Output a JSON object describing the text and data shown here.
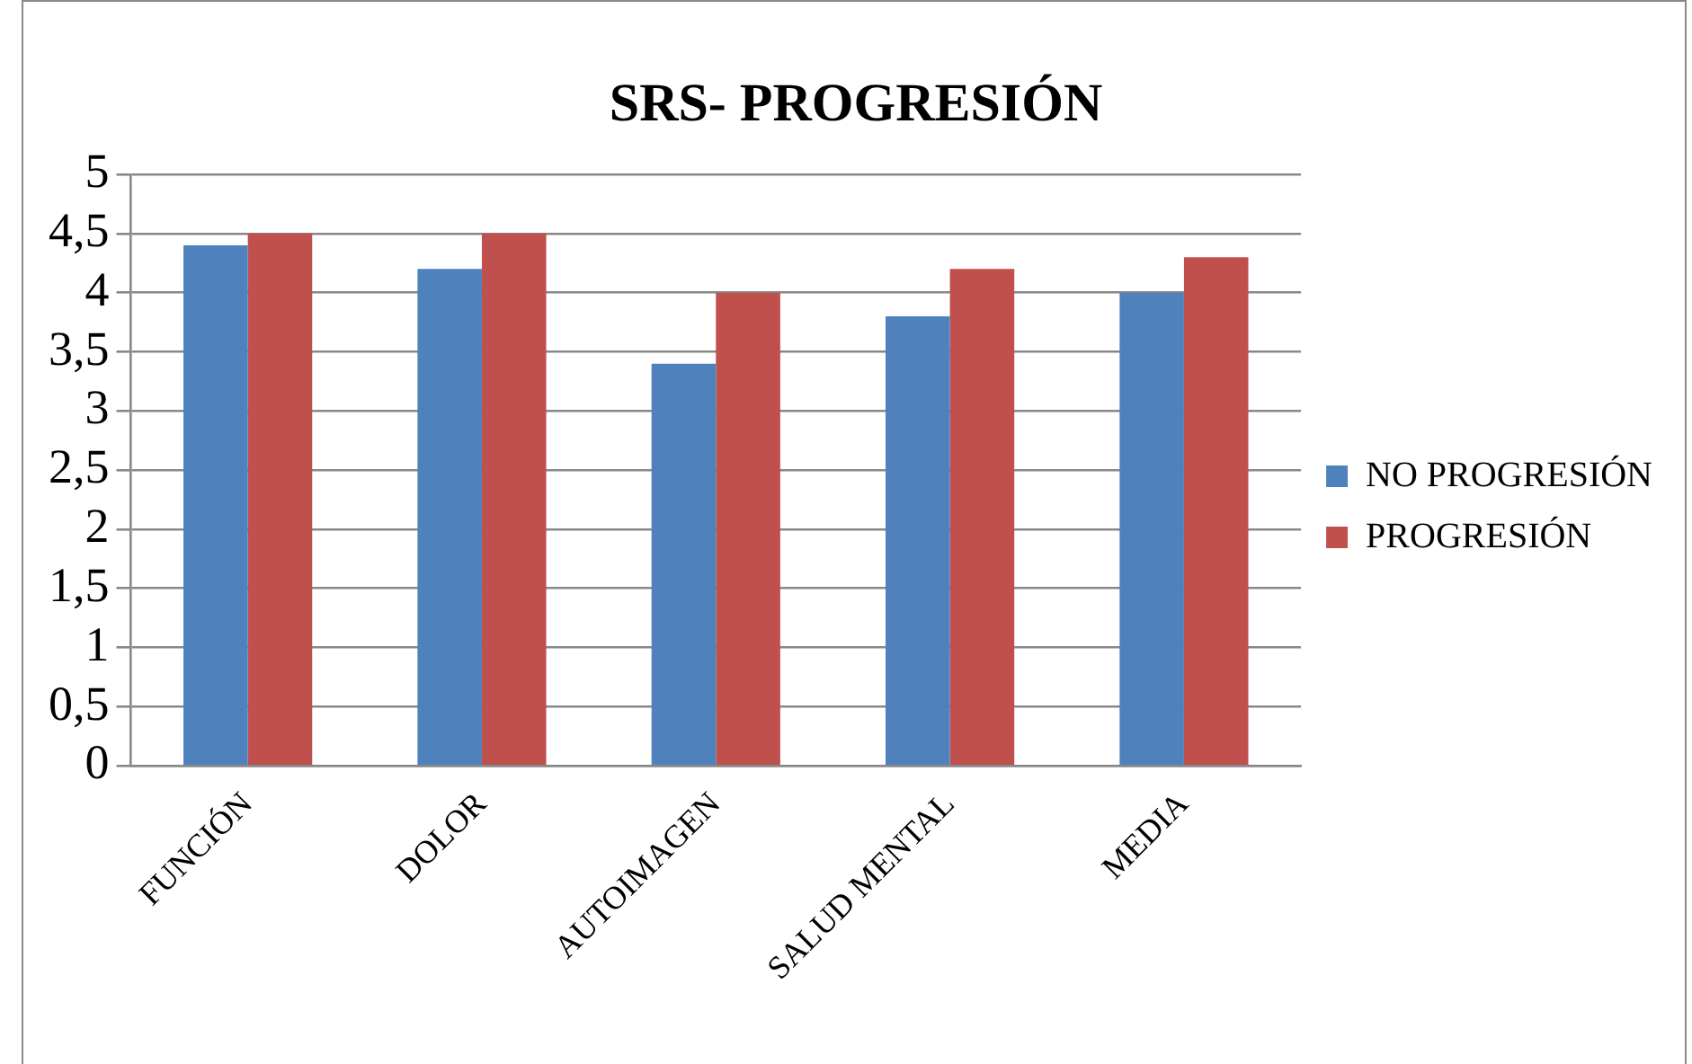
{
  "chart_data": {
    "type": "bar",
    "title": "SRS- PROGRESIÓN",
    "categories": [
      "FUNCIÓN",
      "DOLOR",
      "AUTOIMAGEN",
      "SALUD MENTAL",
      "MEDIA"
    ],
    "series": [
      {
        "name": "NO PROGRESIÓN",
        "color": "#4f81bd",
        "values": [
          4.4,
          4.2,
          3.4,
          3.8,
          4.0
        ]
      },
      {
        "name": "PROGRESIÓN",
        "color": "#c0504d",
        "values": [
          4.5,
          4.5,
          4.0,
          4.2,
          4.3
        ]
      }
    ],
    "ylim": [
      0,
      5
    ],
    "yticks": [
      0,
      {
        "value": 0.5,
        "label": "0,5"
      },
      1,
      {
        "value": 1.5,
        "label": "1,5"
      },
      2,
      {
        "value": 2.5,
        "label": "2,5"
      },
      3,
      {
        "value": 3.5,
        "label": "3,5"
      },
      4,
      {
        "value": 4.5,
        "label": "4,5"
      },
      5
    ],
    "grid": "y",
    "legend": "right"
  }
}
